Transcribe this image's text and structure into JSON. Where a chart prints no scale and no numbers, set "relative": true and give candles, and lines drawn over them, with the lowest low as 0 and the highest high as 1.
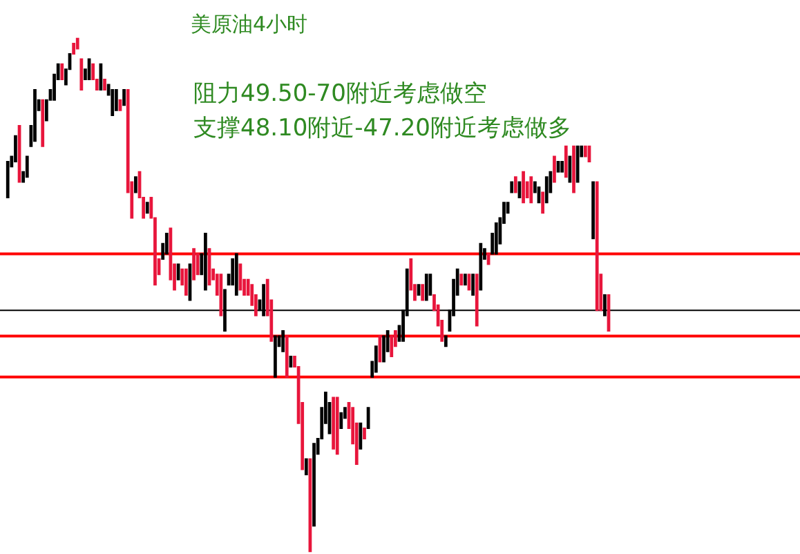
{
  "chart_data": {
    "type": "candlestick",
    "relative": true,
    "title": "美原油4小时",
    "annotations": [
      "阻力49.50-70附近考虑做空",
      "支撑48.10附近-47.20附近考虑做多"
    ],
    "categories": [
      null,
      null,
      null,
      null,
      null,
      null,
      null,
      null,
      null,
      null,
      null,
      null,
      null,
      null,
      null,
      null,
      null,
      null,
      null,
      null,
      null,
      null,
      null,
      null,
      null,
      null,
      null,
      null,
      null,
      null,
      null,
      null,
      null,
      null,
      null,
      null,
      null,
      null,
      null,
      null,
      null,
      null,
      null,
      null,
      null,
      null,
      null,
      null,
      null,
      null,
      null,
      null,
      null,
      null,
      null,
      null,
      null,
      null,
      null,
      null,
      null,
      null,
      null,
      null,
      null,
      null,
      null,
      null,
      null,
      null,
      null,
      null,
      null,
      null,
      null,
      null,
      null,
      null,
      null,
      null,
      null,
      null,
      null,
      null,
      null,
      null,
      null,
      null,
      null,
      null,
      null,
      null,
      null,
      null,
      null,
      null,
      null,
      null,
      null,
      null,
      null,
      null,
      null,
      null,
      null,
      null,
      null,
      null,
      null,
      null,
      null,
      null,
      null,
      null,
      null,
      null,
      null,
      null,
      null,
      null,
      null,
      null,
      null,
      null,
      null,
      null,
      null,
      null,
      null,
      null,
      null,
      null,
      null,
      null,
      null,
      null,
      null,
      null,
      null,
      null,
      null,
      null,
      null,
      null,
      null,
      null,
      null,
      null,
      null,
      null,
      null,
      null,
      null,
      null,
      null,
      null
    ],
    "colors": [
      "#000000",
      "#000000",
      "#000000",
      "#e8163c",
      "#000000",
      "#000000",
      "#000000",
      "#000000",
      "#000000",
      "#e8163c",
      "#000000",
      "#000000",
      "#000000",
      "#000000",
      "#e8163c",
      "#000000",
      "#000000",
      "#e8163c",
      "#e8163c",
      "#e8163c",
      "#000000",
      "#000000",
      "#e8163c",
      "#e8163c",
      "#000000",
      "#e8163c",
      "#000000",
      "#000000",
      "#000000",
      "#e8163c",
      "#000000",
      "#e8163c",
      "#e8163c",
      "#000000",
      "#e8163c",
      "#e8163c",
      "#000000",
      "#e8163c",
      "#e8163c",
      "#e8163c",
      "#000000",
      "#000000",
      "#e8163c",
      "#e8163c",
      "#000000",
      "#e8163c",
      "#e8163c",
      "#000000",
      "#e8163c",
      "#e8163c",
      "#000000",
      "#000000",
      "#e8163c",
      "#e8163c",
      "#e8163c",
      "#e8163c",
      "#000000",
      "#000000",
      "#000000",
      "#000000",
      "#e8163c",
      "#e8163c",
      "#e8163c",
      "#e8163c",
      "#e8163c",
      "#000000",
      "#000000",
      "#e8163c",
      "#e8163c",
      "#000000",
      "#000000",
      "#000000",
      "#e8163c",
      "#000000",
      "#e8163c",
      "#e8163c",
      "#e8163c",
      "#000000",
      "#e8163c",
      "#000000",
      "#000000",
      "#000000",
      "#000000",
      "#000000",
      "#e8163c",
      "#e8163c",
      "#000000",
      "#000000",
      "#e8163c",
      "#e8163c",
      "#e8163c",
      "#000000",
      "#e8163c",
      "#000000",
      "#000000",
      "#000000",
      "#e8163c",
      "#000000",
      "#000000",
      "#e8163c",
      "#e8163c",
      "#000000",
      "#000000",
      "#000000",
      "#e8163c",
      "#e8163c",
      "#000000",
      "#e8163c",
      "#000000",
      "#000000",
      "#e8163c",
      "#e8163c",
      "#e8163c",
      "#000000",
      "#000000",
      "#000000",
      "#000000",
      "#e8163c",
      "#000000",
      "#e8163c",
      "#000000",
      "#e8163c",
      "#000000",
      "#000000",
      "#e8163c",
      "#000000",
      "#000000",
      "#000000",
      "#000000",
      "#000000",
      "#000000",
      "#e8163c",
      "#000000",
      "#e8163c",
      "#e8163c",
      "#e8163c",
      "#000000",
      "#000000",
      "#e8163c",
      "#000000",
      "#000000",
      "#e8163c",
      "#000000",
      "#000000",
      "#e8163c",
      "#000000",
      "#e8163c",
      "#000000",
      "#000000",
      "#e8163c",
      "#e8163c",
      "#000000",
      "#e8163c",
      "#e8163c",
      "#000000",
      "#e8163c"
    ],
    "ohlc": [
      [
        0.69,
        0.76,
        0.69,
        0.76
      ],
      [
        0.75,
        0.77,
        0.75,
        0.77
      ],
      [
        0.76,
        0.81,
        0.76,
        0.81
      ],
      [
        0.83,
        0.83,
        0.72,
        0.72
      ],
      [
        0.72,
        0.74,
        0.72,
        0.74
      ],
      [
        0.73,
        0.77,
        0.73,
        0.77
      ],
      [
        0.79,
        0.83,
        0.79,
        0.83
      ],
      [
        0.8,
        0.9,
        0.8,
        0.9
      ],
      [
        0.86,
        0.88,
        0.86,
        0.88
      ],
      [
        0.88,
        0.88,
        0.79,
        0.79
      ],
      [
        0.84,
        0.88,
        0.84,
        0.88
      ],
      [
        0.88,
        0.9,
        0.88,
        0.9
      ],
      [
        0.88,
        0.93,
        0.88,
        0.93
      ],
      [
        0.92,
        0.95,
        0.92,
        0.95
      ],
      [
        0.95,
        0.95,
        0.92,
        0.92
      ],
      [
        0.91,
        0.94,
        0.91,
        0.94
      ],
      [
        0.94,
        0.97,
        0.94,
        0.97
      ],
      [
        0.99,
        0.99,
        0.97,
        0.97
      ],
      [
        1,
        1,
        0.98,
        0.98
      ],
      [
        0.96,
        0.96,
        0.9,
        0.9
      ],
      [
        0.92,
        0.94,
        0.92,
        0.94
      ],
      [
        0.92,
        0.96,
        0.92,
        0.96
      ],
      [
        0.95,
        0.95,
        0.92,
        0.92
      ],
      [
        0.92,
        0.92,
        0.9,
        0.9
      ],
      [
        0.9,
        0.95,
        0.9,
        0.95
      ],
      [
        0.92,
        0.92,
        0.9,
        0.9
      ],
      [
        0.89,
        0.91,
        0.89,
        0.91
      ],
      [
        0.85,
        0.9,
        0.85,
        0.9
      ],
      [
        0.86,
        0.9,
        0.86,
        0.9
      ],
      [
        0.88,
        0.88,
        0.86,
        0.86
      ],
      [
        0.87,
        0.9,
        0.87,
        0.9
      ],
      [
        0.9,
        0.9,
        0.7,
        0.7
      ],
      [
        0.72,
        0.72,
        0.65,
        0.65
      ],
      [
        0.7,
        0.73,
        0.7,
        0.73
      ],
      [
        0.74,
        0.74,
        0.69,
        0.69
      ],
      [
        0.69,
        0.69,
        0.65,
        0.65
      ],
      [
        0.66,
        0.68,
        0.66,
        0.68
      ],
      [
        0.69,
        0.69,
        0.65,
        0.65
      ],
      [
        0.65,
        0.65,
        0.52,
        0.52
      ],
      [
        0.57,
        0.57,
        0.54,
        0.54
      ],
      [
        0.57,
        0.6,
        0.57,
        0.6
      ],
      [
        0.58,
        0.62,
        0.58,
        0.62
      ],
      [
        0.63,
        0.63,
        0.53,
        0.53
      ],
      [
        0.56,
        0.56,
        0.51,
        0.51
      ],
      [
        0.53,
        0.56,
        0.53,
        0.56
      ],
      [
        0.55,
        0.55,
        0.52,
        0.52
      ],
      [
        0.55,
        0.55,
        0.5,
        0.5
      ],
      [
        0.49,
        0.56,
        0.49,
        0.56
      ],
      [
        0.59,
        0.59,
        0.53,
        0.53
      ],
      [
        0.58,
        0.58,
        0.54,
        0.54
      ],
      [
        0.54,
        0.58,
        0.54,
        0.58
      ],
      [
        0.51,
        0.62,
        0.51,
        0.62
      ],
      [
        0.59,
        0.59,
        0.52,
        0.52
      ],
      [
        0.55,
        0.55,
        0.53,
        0.53
      ],
      [
        0.54,
        0.54,
        0.5,
        0.5
      ],
      [
        0.54,
        0.54,
        0.46,
        0.46
      ],
      [
        0.43,
        0.51,
        0.43,
        0.51
      ],
      [
        0.52,
        0.54,
        0.52,
        0.54
      ],
      [
        0.52,
        0.57,
        0.52,
        0.57
      ],
      [
        0.5,
        0.58,
        0.5,
        0.58
      ],
      [
        0.56,
        0.56,
        0.51,
        0.51
      ],
      [
        0.53,
        0.53,
        0.5,
        0.5
      ],
      [
        0.53,
        0.53,
        0.5,
        0.5
      ],
      [
        0.52,
        0.52,
        0.48,
        0.48
      ],
      [
        0.5,
        0.5,
        0.46,
        0.46
      ],
      [
        0.47,
        0.49,
        0.47,
        0.49
      ],
      [
        0.46,
        0.52,
        0.46,
        0.52
      ],
      [
        0.53,
        0.53,
        0.46,
        0.46
      ],
      [
        0.49,
        0.49,
        0.41,
        0.41
      ],
      [
        0.34,
        0.42,
        0.34,
        0.42
      ],
      [
        0.4,
        0.42,
        0.4,
        0.42
      ],
      [
        0.39,
        0.43,
        0.39,
        0.43
      ],
      [
        0.42,
        0.42,
        0.34,
        0.34
      ],
      [
        0.36,
        0.38,
        0.36,
        0.38
      ],
      [
        0.38,
        0.38,
        0.36,
        0.36
      ],
      [
        0.36,
        0.36,
        0.25,
        0.25
      ],
      [
        0.29,
        0.29,
        0.16,
        0.16
      ],
      [
        0.15,
        0.18,
        0.15,
        0.18
      ],
      [
        0.18,
        0.18,
        0,
        0
      ],
      [
        0.05,
        0.21,
        0.05,
        0.21
      ],
      [
        0.19,
        0.22,
        0.19,
        0.22
      ],
      [
        0.22,
        0.28,
        0.22,
        0.28
      ],
      [
        0.25,
        0.31,
        0.25,
        0.31
      ],
      [
        0.23,
        0.29,
        0.23,
        0.29
      ],
      [
        0.3,
        0.3,
        0.2,
        0.2
      ],
      [
        0.3,
        0.3,
        0.19,
        0.19
      ],
      [
        0.24,
        0.27,
        0.24,
        0.27
      ],
      [
        0.26,
        0.28,
        0.26,
        0.28
      ],
      [
        0.29,
        0.29,
        0.24,
        0.24
      ],
      [
        0.28,
        0.28,
        0.21,
        0.21
      ],
      [
        0.25,
        0.25,
        0.17,
        0.17
      ],
      [
        0.2,
        0.25,
        0.2,
        0.25
      ],
      [
        0.24,
        0.24,
        0.22,
        0.22
      ],
      [
        0.24,
        0.28,
        0.24,
        0.28
      ],
      [
        0.34,
        0.37,
        0.34,
        0.37
      ],
      [
        0.35,
        0.4,
        0.35,
        0.4
      ],
      [
        0.42,
        0.42,
        0.37,
        0.37
      ],
      [
        0.37,
        0.42,
        0.37,
        0.42
      ],
      [
        0.39,
        0.43,
        0.39,
        0.43
      ],
      [
        0.42,
        0.42,
        0.38,
        0.38
      ],
      [
        0.43,
        0.43,
        0.4,
        0.4
      ],
      [
        0.41,
        0.44,
        0.41,
        0.44
      ],
      [
        0.41,
        0.47,
        0.41,
        0.47
      ],
      [
        0.46,
        0.55,
        0.46,
        0.55
      ],
      [
        0.57,
        0.57,
        0.51,
        0.51
      ],
      [
        0.52,
        0.52,
        0.49,
        0.49
      ],
      [
        0.5,
        0.52,
        0.5,
        0.52
      ],
      [
        0.52,
        0.52,
        0.49,
        0.49
      ],
      [
        0.49,
        0.54,
        0.49,
        0.54
      ],
      [
        0.5,
        0.54,
        0.5,
        0.54
      ],
      [
        0.5,
        0.5,
        0.47,
        0.47
      ],
      [
        0.48,
        0.48,
        0.44,
        0.44
      ],
      [
        0.45,
        0.45,
        0.41,
        0.41
      ],
      [
        0.4,
        0.42,
        0.4,
        0.42
      ],
      [
        0.43,
        0.47,
        0.43,
        0.47
      ],
      [
        0.46,
        0.53,
        0.46,
        0.53
      ],
      [
        0.5,
        0.55,
        0.5,
        0.55
      ],
      [
        0.54,
        0.54,
        0.52,
        0.52
      ],
      [
        0.52,
        0.54,
        0.52,
        0.54
      ],
      [
        0.54,
        0.54,
        0.51,
        0.51
      ],
      [
        0.5,
        0.54,
        0.5,
        0.54
      ],
      [
        0.54,
        0.54,
        0.44,
        0.44
      ],
      [
        0.51,
        0.6,
        0.51,
        0.6
      ],
      [
        0.57,
        0.59,
        0.57,
        0.59
      ],
      [
        0.58,
        0.58,
        0.56,
        0.56
      ],
      [
        0.58,
        0.62,
        0.58,
        0.62
      ],
      [
        0.58,
        0.64,
        0.58,
        0.64
      ],
      [
        0.6,
        0.65,
        0.6,
        0.65
      ],
      [
        0.64,
        0.68,
        0.64,
        0.68
      ],
      [
        0.66,
        0.68,
        0.66,
        0.68
      ],
      [
        0.7,
        0.72,
        0.7,
        0.72
      ],
      [
        0.73,
        0.73,
        0.7,
        0.7
      ],
      [
        0.69,
        0.72,
        0.69,
        0.72
      ],
      [
        0.74,
        0.74,
        0.68,
        0.68
      ],
      [
        0.72,
        0.72,
        0.69,
        0.69
      ],
      [
        0.73,
        0.73,
        0.68,
        0.68
      ],
      [
        0.7,
        0.72,
        0.7,
        0.72
      ],
      [
        0.68,
        0.71,
        0.68,
        0.71
      ],
      [
        0.7,
        0.7,
        0.66,
        0.66
      ],
      [
        0.68,
        0.73,
        0.68,
        0.73
      ],
      [
        0.7,
        0.74,
        0.7,
        0.74
      ],
      [
        0.77,
        0.77,
        0.72,
        0.72
      ],
      [
        0.74,
        0.76,
        0.74,
        0.76
      ],
      [
        0.74,
        0.76,
        0.74,
        0.76
      ],
      [
        0.79,
        0.79,
        0.73,
        0.73
      ],
      [
        0.72,
        0.77,
        0.72,
        0.77
      ],
      [
        0.79,
        0.79,
        0.7,
        0.7
      ],
      [
        0.72,
        0.79,
        0.72,
        0.79
      ],
      [
        0.77,
        0.79,
        0.77,
        0.79
      ],
      [
        0.79,
        0.79,
        0.77,
        0.77
      ],
      [
        0.79,
        0.79,
        0.76,
        0.76
      ],
      [
        0.61,
        0.72,
        0.61,
        0.72
      ],
      [
        0.72,
        0.72,
        0.47,
        0.47
      ],
      [
        0.54,
        0.54,
        0.47,
        0.47
      ],
      [
        0.46,
        0.5,
        0.46,
        0.5
      ],
      [
        0.5,
        0.5,
        0.43,
        0.43
      ]
    ],
    "ref_lines": [
      {
        "axis": "y",
        "value": 0.58,
        "color": "#ff0000"
      },
      {
        "axis": "y",
        "value": 0.47,
        "color": "#000000"
      },
      {
        "axis": "y",
        "value": 0.42,
        "color": "#ff0000"
      },
      {
        "axis": "y",
        "value": 0.34,
        "color": "#ff0000"
      }
    ]
  }
}
